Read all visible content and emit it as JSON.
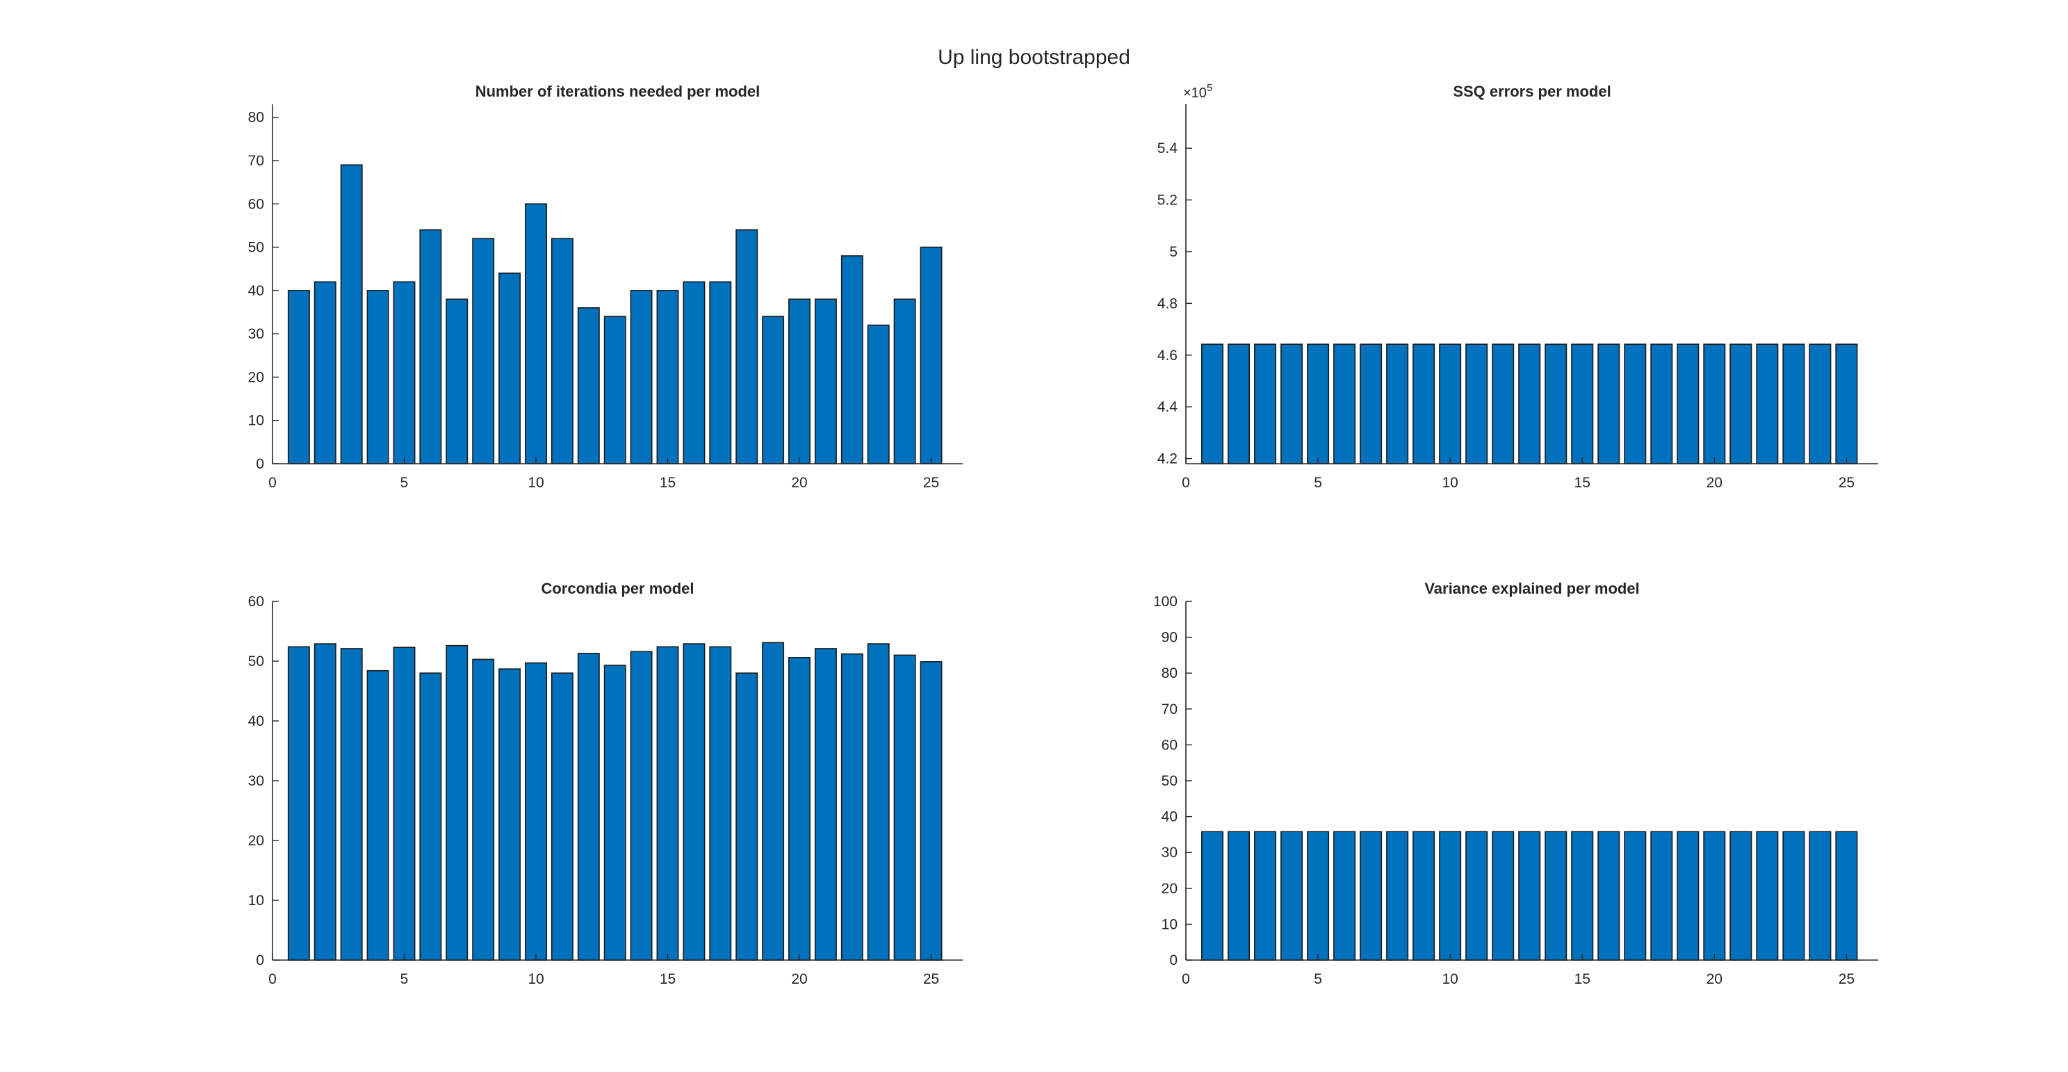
{
  "figure": {
    "suptitle": "Up ling bootstrapped"
  },
  "colors": {
    "bar_fill": "#0072BD",
    "bar_edge": "#1a1a1a",
    "axis": "#262626"
  },
  "chart_data": [
    {
      "type": "bar",
      "title": "Number of iterations needed per model",
      "xlabel": "",
      "ylabel": "",
      "x": [
        1,
        2,
        3,
        4,
        5,
        6,
        7,
        8,
        9,
        10,
        11,
        12,
        13,
        14,
        15,
        16,
        17,
        18,
        19,
        20,
        21,
        22,
        23,
        24,
        25
      ],
      "values": [
        40,
        42,
        69,
        40,
        42,
        54,
        38,
        52,
        44,
        60,
        52,
        36,
        34,
        40,
        40,
        42,
        42,
        54,
        34,
        38,
        38,
        48,
        32,
        38,
        50
      ],
      "xlim": [
        0,
        26.2
      ],
      "ylim": [
        0,
        83
      ],
      "xticks": [
        0,
        5,
        10,
        15,
        20,
        25
      ],
      "yticks": [
        0,
        10,
        20,
        30,
        40,
        50,
        60,
        70,
        80
      ],
      "ytick_labels": [
        "0",
        "10",
        "20",
        "30",
        "40",
        "50",
        "60",
        "70",
        "80"
      ],
      "exponent_label": "",
      "grid": false
    },
    {
      "type": "bar",
      "title": "SSQ errors per model",
      "xlabel": "",
      "ylabel": "",
      "x": [
        1,
        2,
        3,
        4,
        5,
        6,
        7,
        8,
        9,
        10,
        11,
        12,
        13,
        14,
        15,
        16,
        17,
        18,
        19,
        20,
        21,
        22,
        23,
        24,
        25
      ],
      "values": [
        464200,
        464200,
        464200,
        464200,
        464200,
        464200,
        464200,
        464200,
        464200,
        464200,
        464200,
        464200,
        464200,
        464200,
        464200,
        464200,
        464200,
        464200,
        464200,
        464200,
        464200,
        464200,
        464200,
        464200,
        464200
      ],
      "xlim": [
        0,
        26.2
      ],
      "ylim": [
        418000,
        557000
      ],
      "xticks": [
        0,
        5,
        10,
        15,
        20,
        25
      ],
      "yticks": [
        420000,
        440000,
        460000,
        480000,
        500000,
        520000,
        540000
      ],
      "ytick_labels": [
        "4.2",
        "4.4",
        "4.6",
        "4.8",
        "5",
        "5.2",
        "5.4"
      ],
      "exponent_label": "×10",
      "exponent_power": "5",
      "grid": false
    },
    {
      "type": "bar",
      "title": "Corcondia per model",
      "xlabel": "",
      "ylabel": "",
      "x": [
        1,
        2,
        3,
        4,
        5,
        6,
        7,
        8,
        9,
        10,
        11,
        12,
        13,
        14,
        15,
        16,
        17,
        18,
        19,
        20,
        21,
        22,
        23,
        24,
        25
      ],
      "values": [
        52.4,
        52.9,
        52.1,
        48.4,
        52.3,
        48.0,
        52.6,
        50.3,
        48.7,
        49.7,
        48.0,
        51.3,
        49.3,
        51.6,
        52.4,
        52.9,
        52.4,
        48.0,
        53.1,
        50.6,
        52.1,
        51.2,
        52.9,
        51.0,
        49.9
      ],
      "xlim": [
        0,
        26.2
      ],
      "ylim": [
        0,
        60
      ],
      "xticks": [
        0,
        5,
        10,
        15,
        20,
        25
      ],
      "yticks": [
        0,
        10,
        20,
        30,
        40,
        50,
        60
      ],
      "ytick_labels": [
        "0",
        "10",
        "20",
        "30",
        "40",
        "50",
        "60"
      ],
      "exponent_label": "",
      "grid": false
    },
    {
      "type": "bar",
      "title": "Variance explained per model",
      "xlabel": "",
      "ylabel": "",
      "x": [
        1,
        2,
        3,
        4,
        5,
        6,
        7,
        8,
        9,
        10,
        11,
        12,
        13,
        14,
        15,
        16,
        17,
        18,
        19,
        20,
        21,
        22,
        23,
        24,
        25
      ],
      "values": [
        35.8,
        35.8,
        35.8,
        35.8,
        35.8,
        35.8,
        35.8,
        35.8,
        35.8,
        35.8,
        35.8,
        35.8,
        35.8,
        35.8,
        35.8,
        35.8,
        35.8,
        35.8,
        35.8,
        35.8,
        35.8,
        35.8,
        35.8,
        35.8,
        35.8
      ],
      "xlim": [
        0,
        26.2
      ],
      "ylim": [
        0,
        100
      ],
      "xticks": [
        0,
        5,
        10,
        15,
        20,
        25
      ],
      "yticks": [
        0,
        10,
        20,
        30,
        40,
        50,
        60,
        70,
        80,
        90,
        100
      ],
      "ytick_labels": [
        "0",
        "10",
        "20",
        "30",
        "40",
        "50",
        "60",
        "70",
        "80",
        "90",
        "100"
      ],
      "exponent_label": "",
      "grid": false
    }
  ]
}
